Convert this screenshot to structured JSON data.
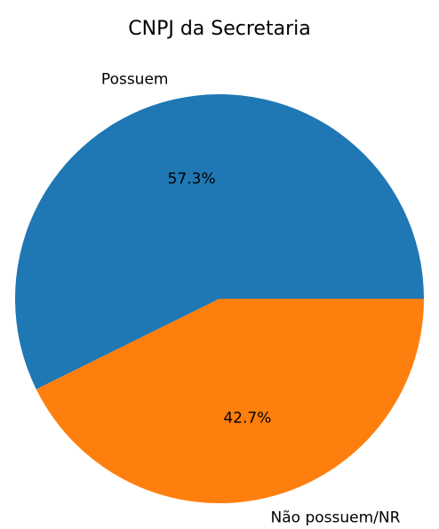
{
  "chart_data": {
    "type": "pie",
    "title": "CNPJ da Secretaria",
    "slices": [
      {
        "label": "Possuem",
        "value": 57.3,
        "pct_label": "57.3%",
        "color": "#1f77b4"
      },
      {
        "label": "Não possuem/NR",
        "value": 42.7,
        "pct_label": "42.7%",
        "color": "#ff7f0e"
      }
    ],
    "start_angle_deg": 0,
    "direction": "counterclockwise",
    "legend": "none"
  }
}
